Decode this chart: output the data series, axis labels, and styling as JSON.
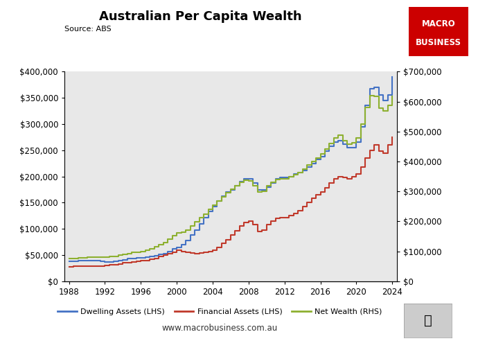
{
  "title": "Australian Per Capita Wealth",
  "source": "Source: ABS",
  "website": "www.macrobusiness.com.au",
  "lhs_ylim": [
    0,
    400000
  ],
  "rhs_ylim": [
    0,
    700000
  ],
  "lhs_yticks": [
    0,
    50000,
    100000,
    150000,
    200000,
    250000,
    300000,
    350000,
    400000
  ],
  "rhs_yticks": [
    0,
    100000,
    200000,
    300000,
    400000,
    500000,
    600000,
    700000
  ],
  "xticks": [
    1988,
    1992,
    1996,
    2000,
    2004,
    2008,
    2012,
    2016,
    2020,
    2024
  ],
  "xlim": [
    1987.5,
    2024.5
  ],
  "colors": {
    "dwelling": "#4472C4",
    "financial": "#C0392B",
    "netwealth": "#8DB030",
    "background": "#E8E8E8",
    "macro_red": "#CC0000",
    "macro_text": "#FFFFFF"
  },
  "dwelling_years": [
    1988,
    1988.5,
    1989,
    1989.5,
    1990,
    1990.5,
    1991,
    1991.5,
    1992,
    1992.5,
    1993,
    1993.5,
    1994,
    1994.5,
    1995,
    1995.5,
    1996,
    1996.5,
    1997,
    1997.5,
    1998,
    1998.5,
    1999,
    1999.5,
    2000,
    2000.5,
    2001,
    2001.5,
    2002,
    2002.5,
    2003,
    2003.5,
    2004,
    2004.5,
    2005,
    2005.5,
    2006,
    2006.5,
    2007,
    2007.5,
    2008,
    2008.5,
    2009,
    2009.5,
    2010,
    2010.5,
    2011,
    2011.5,
    2012,
    2012.5,
    2013,
    2013.5,
    2014,
    2014.5,
    2015,
    2015.5,
    2016,
    2016.5,
    2017,
    2017.5,
    2018,
    2018.5,
    2019,
    2019.5,
    2020,
    2020.5,
    2021,
    2021.5,
    2022,
    2022.5,
    2023,
    2023.5,
    2024
  ],
  "dwelling_values": [
    38000,
    38500,
    39000,
    39500,
    40000,
    40000,
    39000,
    38000,
    37000,
    37500,
    38000,
    39000,
    41000,
    43000,
    44000,
    44500,
    45000,
    46000,
    47000,
    49000,
    51000,
    53000,
    57000,
    62000,
    65000,
    70000,
    78000,
    88000,
    98000,
    110000,
    122000,
    133000,
    143000,
    153000,
    162000,
    170000,
    175000,
    182000,
    190000,
    195000,
    195000,
    188000,
    175000,
    175000,
    180000,
    188000,
    195000,
    198000,
    198000,
    200000,
    205000,
    208000,
    212000,
    218000,
    225000,
    232000,
    238000,
    248000,
    258000,
    265000,
    268000,
    262000,
    255000,
    255000,
    265000,
    295000,
    335000,
    368000,
    370000,
    355000,
    345000,
    355000,
    390000
  ],
  "financial_years": [
    1988,
    1988.5,
    1989,
    1989.5,
    1990,
    1990.5,
    1991,
    1991.5,
    1992,
    1992.5,
    1993,
    1993.5,
    1994,
    1994.5,
    1995,
    1995.5,
    1996,
    1996.5,
    1997,
    1997.5,
    1998,
    1998.5,
    1999,
    1999.5,
    2000,
    2000.5,
    2001,
    2001.5,
    2002,
    2002.5,
    2003,
    2003.5,
    2004,
    2004.5,
    2005,
    2005.5,
    2006,
    2006.5,
    2007,
    2007.5,
    2008,
    2008.5,
    2009,
    2009.5,
    2010,
    2010.5,
    2011,
    2011.5,
    2012,
    2012.5,
    2013,
    2013.5,
    2014,
    2014.5,
    2015,
    2015.5,
    2016,
    2016.5,
    2017,
    2017.5,
    2018,
    2018.5,
    2019,
    2019.5,
    2020,
    2020.5,
    2021,
    2021.5,
    2022,
    2022.5,
    2023,
    2023.5,
    2024
  ],
  "financial_values": [
    28000,
    28500,
    29000,
    29000,
    29000,
    29000,
    29000,
    29500,
    30000,
    31000,
    32000,
    33000,
    35000,
    36000,
    37000,
    38000,
    39000,
    40000,
    42000,
    44000,
    47000,
    50000,
    53000,
    56000,
    59000,
    57000,
    55000,
    54000,
    53000,
    54000,
    55000,
    57000,
    60000,
    65000,
    72000,
    79000,
    88000,
    96000,
    105000,
    112000,
    115000,
    108000,
    95000,
    98000,
    108000,
    115000,
    120000,
    122000,
    122000,
    125000,
    130000,
    135000,
    142000,
    150000,
    158000,
    165000,
    170000,
    178000,
    188000,
    195000,
    200000,
    198000,
    195000,
    200000,
    205000,
    218000,
    235000,
    250000,
    260000,
    248000,
    245000,
    260000,
    275000
  ],
  "netwealth_years": [
    1988,
    1988.5,
    1989,
    1989.5,
    1990,
    1990.5,
    1991,
    1991.5,
    1992,
    1992.5,
    1993,
    1993.5,
    1994,
    1994.5,
    1995,
    1995.5,
    1996,
    1996.5,
    1997,
    1997.5,
    1998,
    1998.5,
    1999,
    1999.5,
    2000,
    2000.5,
    2001,
    2001.5,
    2002,
    2002.5,
    2003,
    2003.5,
    2004,
    2004.5,
    2005,
    2005.5,
    2006,
    2006.5,
    2007,
    2007.5,
    2008,
    2008.5,
    2009,
    2009.5,
    2010,
    2010.5,
    2011,
    2011.5,
    2012,
    2012.5,
    2013,
    2013.5,
    2014,
    2014.5,
    2015,
    2015.5,
    2016,
    2016.5,
    2017,
    2017.5,
    2018,
    2018.5,
    2019,
    2019.5,
    2020,
    2020.5,
    2021,
    2021.5,
    2022,
    2022.5,
    2023,
    2023.5,
    2024
  ],
  "netwealth_values": [
    75000,
    76000,
    78000,
    79000,
    80000,
    80000,
    80000,
    80000,
    80000,
    82000,
    84000,
    87000,
    90000,
    93000,
    96000,
    98000,
    100000,
    103000,
    108000,
    115000,
    122000,
    130000,
    140000,
    152000,
    162000,
    165000,
    172000,
    185000,
    198000,
    212000,
    225000,
    240000,
    255000,
    268000,
    282000,
    295000,
    308000,
    318000,
    330000,
    338000,
    335000,
    320000,
    298000,
    300000,
    318000,
    330000,
    340000,
    342000,
    342000,
    348000,
    355000,
    362000,
    375000,
    388000,
    400000,
    412000,
    425000,
    442000,
    460000,
    478000,
    488000,
    470000,
    458000,
    462000,
    478000,
    525000,
    580000,
    620000,
    618000,
    578000,
    568000,
    588000,
    618000
  ]
}
